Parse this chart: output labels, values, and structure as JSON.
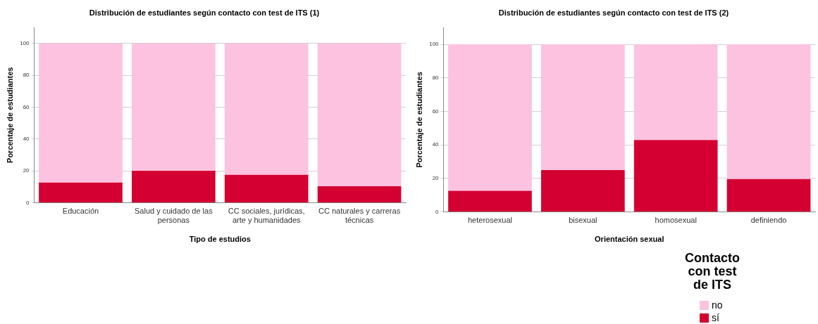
{
  "chart_data": [
    {
      "type": "bar",
      "title": "Distribución de estudiantes según contacto con test de ITS (1)",
      "xlabel": "Tipo de estudios",
      "ylabel": "Porcentaje de estudiantes",
      "categories": [
        "Educación",
        "Salud y cuidado de las personas",
        "CC sociales, jurídicas, arte y humanidades",
        "CC naturales y carreras técnicas"
      ],
      "stacked": true,
      "series": [
        {
          "color": "#d50032",
          "values": [
            12.6,
            20,
            17.5,
            10.3
          ]
        },
        {
          "color": "#fcc2e0",
          "values": [
            87.4,
            80,
            82.5,
            89.7
          ]
        }
      ],
      "ylim": [
        0,
        110
      ],
      "yticks": [
        0,
        20,
        40,
        60,
        80,
        100
      ],
      "grid": "y",
      "legend": false
    },
    {
      "type": "bar",
      "title": "Distribución de estudiantes según contacto con test de ITS (2)",
      "xlabel": "Orientación sexual",
      "ylabel": "Porcentaje de estudiantes",
      "legend_title": "Contacto con test de ITS",
      "categories": [
        "heterosexual",
        "bisexual",
        "homosexual",
        "definiendo"
      ],
      "stacked": true,
      "series": [
        {
          "name": "sí",
          "color": "#d50032",
          "values": [
            12.6,
            25,
            42.9,
            19.6
          ]
        },
        {
          "name": "no",
          "color": "#fcc2e0",
          "values": [
            87.4,
            75,
            57.1,
            80.4
          ]
        }
      ],
      "ylim": [
        0,
        110
      ],
      "yticks": [
        0,
        20,
        40,
        60,
        80,
        100
      ],
      "grid": "y",
      "legend": "bottom right"
    }
  ]
}
